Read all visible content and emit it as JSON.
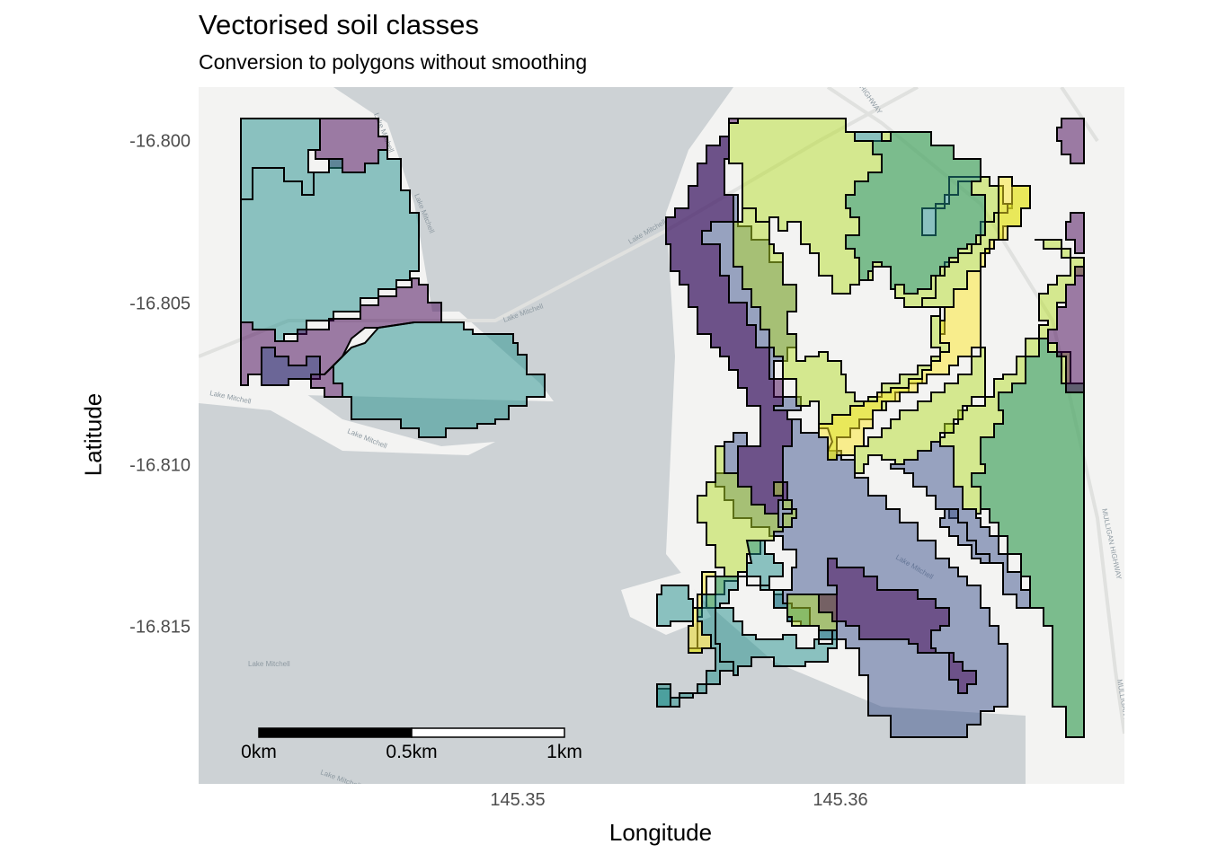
{
  "title": "Vectorised soil classes",
  "subtitle": "Conversion to polygons without smoothing",
  "axes": {
    "x_label": "Longitude",
    "y_label": "Latitude",
    "x_ticks": [
      "145.35",
      "145.36"
    ],
    "y_ticks": [
      "-16.800",
      "-16.805",
      "-16.810",
      "-16.815"
    ]
  },
  "basemap": {
    "labels": [
      "Lake Mitchell",
      "Lake Mitchell",
      "Lake Mitchell",
      "Lake Mitchell",
      "Lake Mitchell",
      "Lake Mitchell",
      "Lake Mitchell",
      "Lake Mitchell",
      "Lake Mitchell",
      "MULLIGAN HIGHWAY",
      "MULLIGAN HIGHWAY",
      "HIGHWAY"
    ],
    "colors": {
      "water": "#cdd2d5",
      "land": "#f3f3f2",
      "road": "#e0e1df"
    }
  },
  "scale_bar": {
    "labels": [
      "0km",
      "0.5km",
      "1km"
    ]
  },
  "soil_palette": {
    "class_1": "#440154",
    "class_2": "#3b528b",
    "class_3": "#21908c",
    "class_4": "#5dc863",
    "class_5": "#b5de2b",
    "class_6": "#fde725"
  }
}
